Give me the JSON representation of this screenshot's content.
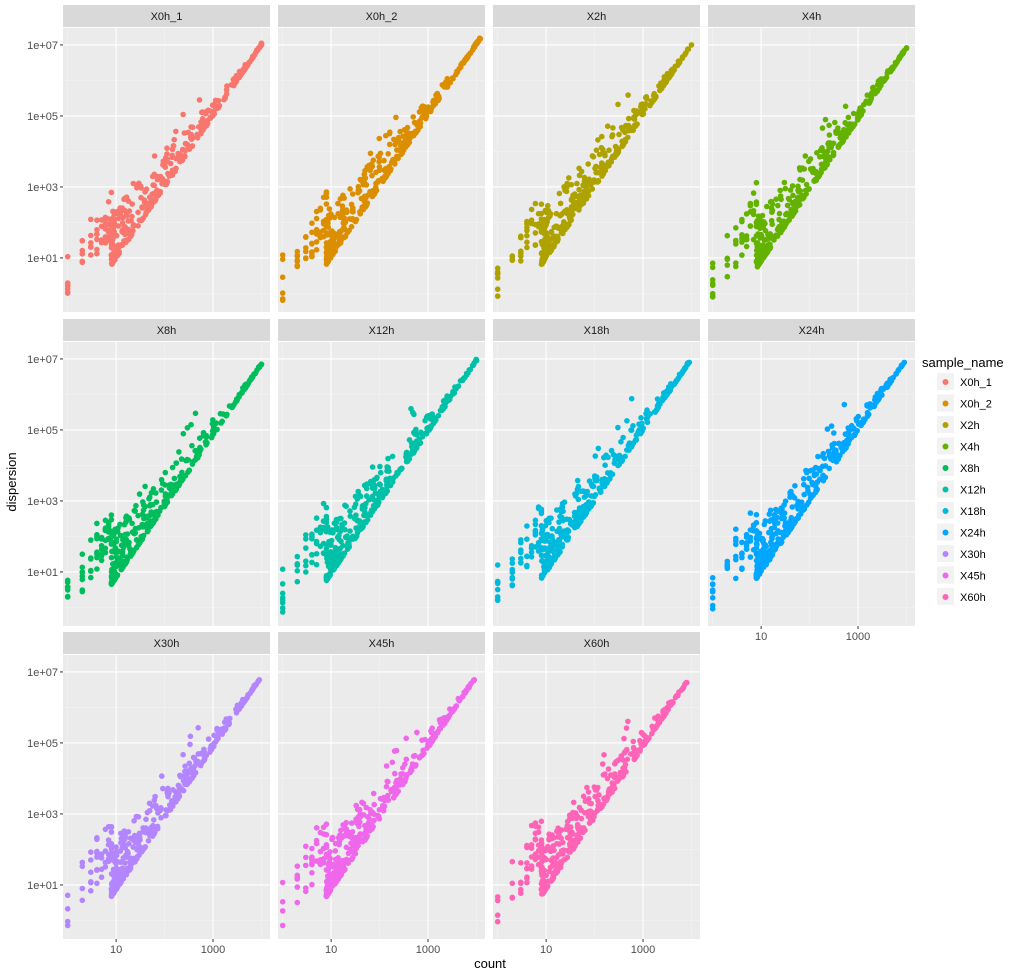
{
  "chart_data": {
    "type": "scatter",
    "facet_layout": "4 columns x 3 rows",
    "x_scale": "log10",
    "y_scale": "log10",
    "xlabel": "count",
    "ylabel": "dispersion",
    "x_ticks": [
      10,
      1000
    ],
    "x_tick_labels": [
      "10",
      "1000"
    ],
    "y_ticks": [
      10,
      1000,
      100000,
      10000000
    ],
    "y_tick_labels": [
      "1e+01",
      "1e+03",
      "1e+05",
      "1e+07"
    ],
    "xlim": [
      0.8,
      15000
    ],
    "ylim": [
      0.3,
      30000000
    ],
    "grid": true,
    "legend_position": "right",
    "legend_title": "sample_name",
    "series": [
      {
        "name": "X0h_1",
        "color": "#F8766D",
        "max_count": 10000,
        "max_dispersion": 10000000
      },
      {
        "name": "X0h_2",
        "color": "#DB8E00",
        "max_count": 12000,
        "max_dispersion": 15000000
      },
      {
        "name": "X2h",
        "color": "#AEA200",
        "max_count": 10000,
        "max_dispersion": 10000000
      },
      {
        "name": "X4h",
        "color": "#64B200",
        "max_count": 10000,
        "max_dispersion": 8000000
      },
      {
        "name": "X8h",
        "color": "#00BD5C",
        "max_count": 10000,
        "max_dispersion": 7000000
      },
      {
        "name": "X12h",
        "color": "#00C1A7",
        "max_count": 10000,
        "max_dispersion": 9000000
      },
      {
        "name": "X18h",
        "color": "#00BADE",
        "max_count": 9000,
        "max_dispersion": 8000000
      },
      {
        "name": "X24h",
        "color": "#00A6FF",
        "max_count": 9000,
        "max_dispersion": 8000000
      },
      {
        "name": "X30h",
        "color": "#B385FF",
        "max_count": 9000,
        "max_dispersion": 6000000
      },
      {
        "name": "X45h",
        "color": "#EF67EB",
        "max_count": 9000,
        "max_dispersion": 6000000
      },
      {
        "name": "X60h",
        "color": "#FF63B6",
        "max_count": 8000,
        "max_dispersion": 5000000
      }
    ],
    "trend": "dispersion rises roughly as count squared; points spread upward above the trend at low counts (about 1 to 100)"
  }
}
